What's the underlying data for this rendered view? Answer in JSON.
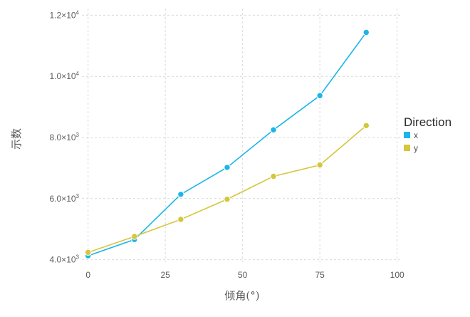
{
  "chart_data": {
    "type": "line",
    "xlabel": "倾角(°)",
    "ylabel": "示数",
    "xlim": [
      -2,
      101
    ],
    "ylim": [
      3920,
      12220
    ],
    "x_ticks": [
      0,
      25,
      50,
      75,
      100
    ],
    "x_tick_labels": [
      "0",
      "25",
      "50",
      "75",
      "100"
    ],
    "y_ticks": [
      4000,
      6000,
      8000,
      10000,
      12000
    ],
    "y_tick_mantissas": [
      "4.0",
      "6.0",
      "8.0",
      "1.0",
      "1.2"
    ],
    "y_tick_bases": [
      "×10",
      "×10",
      "×10",
      "×10",
      "×10"
    ],
    "y_tick_exponents": [
      "3",
      "3",
      "3",
      "4",
      "4"
    ],
    "grid": true,
    "legend": {
      "title": "Direction",
      "placement": "right"
    },
    "x": [
      0,
      15,
      30,
      45,
      60,
      75,
      90
    ],
    "series": [
      {
        "name": "x",
        "color": "#1bb6e8",
        "values": [
          4130,
          4660,
          6140,
          7020,
          8250,
          9370,
          11440
        ]
      },
      {
        "name": "y",
        "color": "#d5c63b",
        "values": [
          4240,
          4760,
          5320,
          5980,
          6730,
          7100,
          8390
        ]
      }
    ]
  }
}
